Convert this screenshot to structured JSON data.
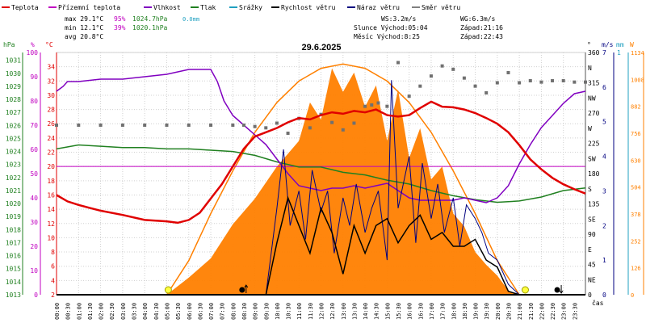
{
  "chart_data": {
    "type": "line",
    "title": "29.6.2025",
    "legend": [
      {
        "key": "temp",
        "label": "Teplota",
        "color": "#e00000"
      },
      {
        "key": "feels",
        "label": "Přízemní teplota",
        "color": "#c000c0"
      },
      {
        "key": "hum",
        "label": "Vlhkost",
        "color": "#8000c0"
      },
      {
        "key": "press",
        "label": "Tlak",
        "color": "#208020"
      },
      {
        "key": "rain",
        "label": "Srážky",
        "color": "#20a0c0"
      },
      {
        "key": "wind",
        "label": "Rychlost větru",
        "color": "#000000"
      },
      {
        "key": "gust",
        "label": "Náraz větru",
        "color": "#000080"
      },
      {
        "key": "dir",
        "label": "Směr větru",
        "color": "#808080"
      }
    ],
    "stats": {
      "max_temp": "max 29.1°C",
      "max_hum": "95%",
      "max_press": "1024.7hPa",
      "max_rain": "0.0mm",
      "min_temp": "min 12.1°C",
      "min_hum": "39%",
      "min_press": "1020.1hPa",
      "avg_temp": "avg 20.8°C"
    },
    "info": {
      "ws": "WS:3.2m/s",
      "wg": "WG:6.3m/s",
      "sun": "Slunce Východ:05:04",
      "sun_set": "Západ:21:16",
      "moon": "Měsíc  Východ:8:25",
      "moon_set": "Západ:22:43"
    },
    "axes": {
      "hpa_label": "hPa",
      "pct_label": "%",
      "c_label": "°C",
      "deg_label": "°",
      "ms_label": "m/s",
      "mm_label": "mm",
      "w_label": "W",
      "time_label": "čas",
      "hpa_ticks": [
        "1031",
        "1030",
        "1029",
        "1028",
        "1027",
        "1026",
        "1025",
        "1024",
        "1023",
        "1022",
        "1021",
        "1020",
        "1019",
        "1018",
        "1017",
        "1016",
        "1015",
        "1014",
        "1013"
      ],
      "pct_ticks": [
        "100",
        "90",
        "80",
        "70",
        "60",
        "50",
        "40",
        "30",
        "20",
        "10",
        "0"
      ],
      "c_ticks": [
        "34",
        "32",
        "30",
        "28",
        "26",
        "24",
        "22",
        "20",
        "18",
        "16",
        "14",
        "12",
        "10",
        "8",
        "6",
        "4",
        "2"
      ],
      "deg_ticks": [
        "360",
        "N",
        "315",
        "NW",
        "270",
        "W",
        "225",
        "SW",
        "180",
        "S",
        "135",
        "SE",
        "90",
        "E",
        "45",
        "NE",
        "0"
      ],
      "ms_ticks": [
        "7",
        "6",
        "5",
        "4",
        "3",
        "2",
        "1",
        "0"
      ],
      "mm_ticks": [
        "1"
      ],
      "w_ticks": [
        "1134",
        "1008",
        "882",
        "756",
        "630",
        "504",
        "378",
        "252",
        "126",
        "0"
      ],
      "hours": [
        "00:00",
        "00:30",
        "01:00",
        "01:30",
        "02:00",
        "02:30",
        "03:00",
        "03:30",
        "04:00",
        "04:30",
        "05:00",
        "05:30",
        "06:00",
        "06:30",
        "07:00",
        "07:30",
        "08:00",
        "08:30",
        "09:00",
        "09:30",
        "10:00",
        "10:30",
        "11:00",
        "11:30",
        "12:00",
        "12:30",
        "13:00",
        "13:30",
        "14:00",
        "14:30",
        "15:00",
        "15:30",
        "16:00",
        "16:30",
        "17:00",
        "17:30",
        "18:00",
        "18:30",
        "19:00",
        "19:30",
        "20:00",
        "20:30",
        "21:00",
        "21:30",
        "22:00",
        "22:30",
        "23:00",
        "23:30"
      ]
    },
    "ylim_temp": [
      2,
      36
    ],
    "ylim_hum": [
      0,
      100
    ],
    "ylim_press": [
      1013,
      1031.6
    ],
    "ylim_dir": [
      0,
      360
    ],
    "ylim_wind": [
      0,
      7
    ],
    "ylim_solar": [
      0,
      1134
    ],
    "reference_temp": 20,
    "temperature": {
      "hours": [
        0,
        0.5,
        1,
        1.5,
        2,
        3,
        4,
        4.5,
        5,
        5.5,
        6,
        6.5,
        7,
        7.5,
        8,
        8.5,
        9,
        9.5,
        10,
        10.5,
        11,
        11.5,
        12,
        12.5,
        13,
        13.5,
        14,
        14.5,
        15,
        15.5,
        16,
        16.5,
        17,
        17.5,
        18,
        18.5,
        19,
        19.5,
        20,
        20.5,
        21,
        21.5,
        22,
        22.5,
        23,
        23.5,
        24
      ],
      "values": [
        16,
        15.1,
        14.6,
        14.2,
        13.8,
        13.2,
        12.5,
        12.4,
        12.3,
        12.1,
        12.5,
        13.5,
        15.5,
        17.5,
        20,
        22.5,
        24.2,
        24.8,
        25.4,
        26.2,
        26.8,
        26.6,
        27.2,
        27.6,
        27.4,
        27.8,
        27.6,
        28.0,
        27.2,
        27.0,
        27.2,
        28.2,
        29.1,
        28.4,
        28.3,
        28.0,
        27.5,
        26.8,
        26.0,
        24.8,
        23.0,
        21.0,
        19.6,
        18.4,
        17.5,
        16.8,
        16.2
      ]
    },
    "humidity": {
      "hours": [
        0,
        0.3,
        0.5,
        1,
        2,
        3,
        4,
        5,
        6,
        6.5,
        7,
        7.3,
        7.6,
        8,
        8.5,
        9,
        9.5,
        10,
        10.5,
        11,
        11.5,
        12,
        12.5,
        13,
        13.5,
        14,
        14.5,
        15,
        15.5,
        16,
        16.5,
        17,
        17.5,
        18,
        18.5,
        19,
        19.5,
        20,
        20.5,
        21,
        21.5,
        22,
        22.5,
        23,
        23.5,
        24
      ],
      "values": [
        84,
        86,
        88,
        88,
        89,
        89,
        90,
        91,
        93,
        93,
        93,
        88,
        80,
        74,
        70,
        66,
        62,
        56,
        50,
        45,
        44,
        43,
        44,
        44,
        45,
        44,
        45,
        46,
        43,
        40,
        39,
        39,
        39,
        39,
        40,
        39,
        38,
        40,
        45,
        54,
        62,
        69,
        74,
        79,
        83,
        84
      ]
    },
    "pressure": {
      "hours": [
        0,
        1,
        2,
        3,
        4,
        5,
        6,
        7,
        8,
        9,
        10,
        11,
        12,
        13,
        14,
        15,
        16,
        17,
        18,
        19,
        20,
        21,
        22,
        23,
        24
      ],
      "values": [
        1024.2,
        1024.5,
        1024.4,
        1024.3,
        1024.3,
        1024.2,
        1024.2,
        1024.1,
        1024.0,
        1023.7,
        1023.2,
        1022.8,
        1022.8,
        1022.4,
        1022.2,
        1021.8,
        1021.5,
        1021.0,
        1020.6,
        1020.3,
        1020.1,
        1020.2,
        1020.5,
        1021.0,
        1021.2
      ]
    },
    "wind_direction": {
      "hours": [
        0,
        1,
        2,
        3,
        4,
        5,
        6,
        7,
        8,
        8.5,
        9,
        9.5,
        10,
        10.5,
        11,
        11.5,
        12,
        12.5,
        13,
        13.5,
        14,
        14.3,
        14.6,
        15,
        15.5,
        16,
        16.5,
        17,
        17.5,
        18,
        18.5,
        19,
        19.5,
        20,
        20.5,
        21,
        21.5,
        22,
        22.5,
        23,
        23.5,
        24
      ],
      "values": [
        252,
        252,
        252,
        252,
        252,
        252,
        252,
        252,
        252,
        252,
        250,
        248,
        255,
        240,
        262,
        248,
        268,
        256,
        245,
        255,
        280,
        282,
        285,
        280,
        345,
        295,
        310,
        325,
        340,
        335,
        322,
        310,
        300,
        315,
        330,
        315,
        318,
        316,
        318,
        318,
        316,
        316
      ]
    },
    "wind_speed": {
      "hours": [
        0,
        9,
        9.5,
        10,
        10.5,
        11,
        11.5,
        12,
        12.5,
        13,
        13.5,
        14,
        14.5,
        15,
        15.5,
        16,
        16.5,
        17,
        17.5,
        18,
        18.5,
        19,
        19.5,
        20,
        20.5,
        21,
        24
      ],
      "values": [
        0,
        0,
        0,
        1.5,
        2.8,
        2.0,
        1.2,
        2.5,
        1.8,
        0.6,
        2.0,
        1.2,
        2.0,
        2.2,
        1.5,
        2.0,
        2.3,
        1.6,
        1.8,
        1.4,
        1.4,
        1.6,
        1.0,
        0.8,
        0.1,
        0,
        0
      ]
    },
    "wind_gust": {
      "hours": [
        0,
        9,
        9.5,
        10,
        10.3,
        10.6,
        11,
        11.3,
        11.6,
        12,
        12.3,
        12.6,
        13,
        13.3,
        13.6,
        14,
        14.3,
        14.6,
        15,
        15.2,
        15.5,
        16,
        16.3,
        16.6,
        17,
        17.3,
        17.6,
        18,
        18.3,
        18.6,
        19,
        19.3,
        19.6,
        20,
        20.5,
        21,
        24
      ],
      "values": [
        0,
        0,
        0,
        2.5,
        4.2,
        2.0,
        3.0,
        1.6,
        3.6,
        2.4,
        3.0,
        1.2,
        2.8,
        2.0,
        3.2,
        1.8,
        2.5,
        3.0,
        1.0,
        6.2,
        2.5,
        4.0,
        1.5,
        3.8,
        2.2,
        3.2,
        1.8,
        2.8,
        1.4,
        2.6,
        2.2,
        1.8,
        1.2,
        1.0,
        0.3,
        0,
        0
      ]
    },
    "solar": {
      "hours": [
        5,
        6,
        7,
        8,
        9,
        10,
        10.5,
        11,
        11.5,
        12,
        12.5,
        13,
        13.5,
        14,
        14.5,
        15,
        15.5,
        16,
        16.5,
        17,
        17.5,
        18,
        18.5,
        19,
        19.5,
        20,
        20.5,
        21
      ],
      "values": [
        0,
        80,
        170,
        330,
        450,
        600,
        660,
        720,
        900,
        820,
        1060,
        950,
        1040,
        880,
        980,
        720,
        960,
        640,
        780,
        540,
        600,
        380,
        320,
        200,
        140,
        90,
        20,
        0
      ]
    },
    "clear_sky": {
      "hours": [
        5,
        6,
        7,
        8,
        9,
        10,
        11,
        12,
        13,
        14,
        15,
        16,
        17,
        18,
        19,
        20,
        21
      ],
      "values": [
        0,
        160,
        380,
        580,
        760,
        900,
        1000,
        1060,
        1080,
        1060,
        1000,
        900,
        760,
        580,
        380,
        160,
        0
      ]
    },
    "markers": [
      {
        "type": "sun-rise",
        "hour": 5.07
      },
      {
        "type": "moon-rise",
        "hour": 8.42
      },
      {
        "type": "sun-set",
        "hour": 21.27
      },
      {
        "type": "moon-set",
        "hour": 22.72
      }
    ]
  }
}
